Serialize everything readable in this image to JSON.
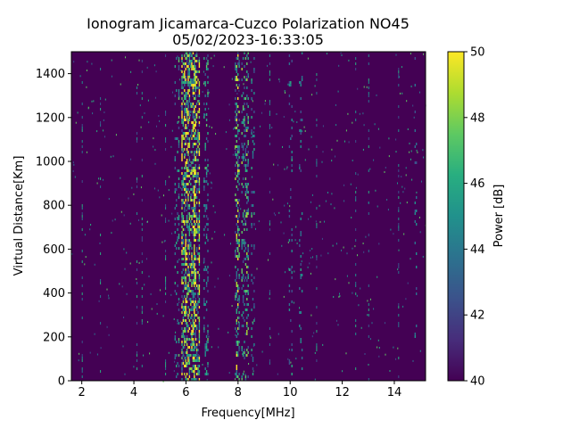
{
  "chart_data": {
    "type": "heatmap",
    "title_line1": "Ionogram Jicamarca-Cuzco Polarization NO45",
    "title_line2": "05/02/2023-16:33:05",
    "xlabel": "Frequency[MHz]",
    "ylabel": "Virtual Distance[Km]",
    "xlim": [
      1.6,
      15.2
    ],
    "ylim": [
      0,
      1500
    ],
    "xticks": [
      2,
      4,
      6,
      8,
      10,
      12,
      14
    ],
    "yticks": [
      0,
      200,
      400,
      600,
      800,
      1000,
      1200,
      1400
    ],
    "colorbar": {
      "label": "Power [dB]",
      "range": [
        40,
        50
      ],
      "ticks": [
        40,
        42,
        44,
        46,
        48,
        50
      ],
      "colormap": "viridis"
    },
    "background_color": "#440154",
    "echo_bands_mhz": [
      {
        "center": 5.65,
        "width": 0.18,
        "intensity": 0.35
      },
      {
        "center": 6.0,
        "width": 0.35,
        "intensity": 0.85
      },
      {
        "center": 6.35,
        "width": 0.3,
        "intensity": 0.9
      },
      {
        "center": 6.75,
        "width": 0.15,
        "intensity": 0.35
      },
      {
        "center": 7.95,
        "width": 0.15,
        "intensity": 0.7
      },
      {
        "center": 8.25,
        "width": 0.25,
        "intensity": 0.55
      },
      {
        "center": 8.55,
        "width": 0.1,
        "intensity": 0.3
      },
      {
        "center": 10.0,
        "width": 0.1,
        "intensity": 0.25
      },
      {
        "center": 10.4,
        "width": 0.12,
        "intensity": 0.25
      },
      {
        "center": 14.8,
        "width": 0.05,
        "intensity": 0.3
      }
    ],
    "faint_lines_mhz": [
      2.0,
      2.7,
      4.1,
      4.3,
      5.2,
      9.2,
      11.0,
      12.5,
      13.0,
      14.15
    ]
  }
}
